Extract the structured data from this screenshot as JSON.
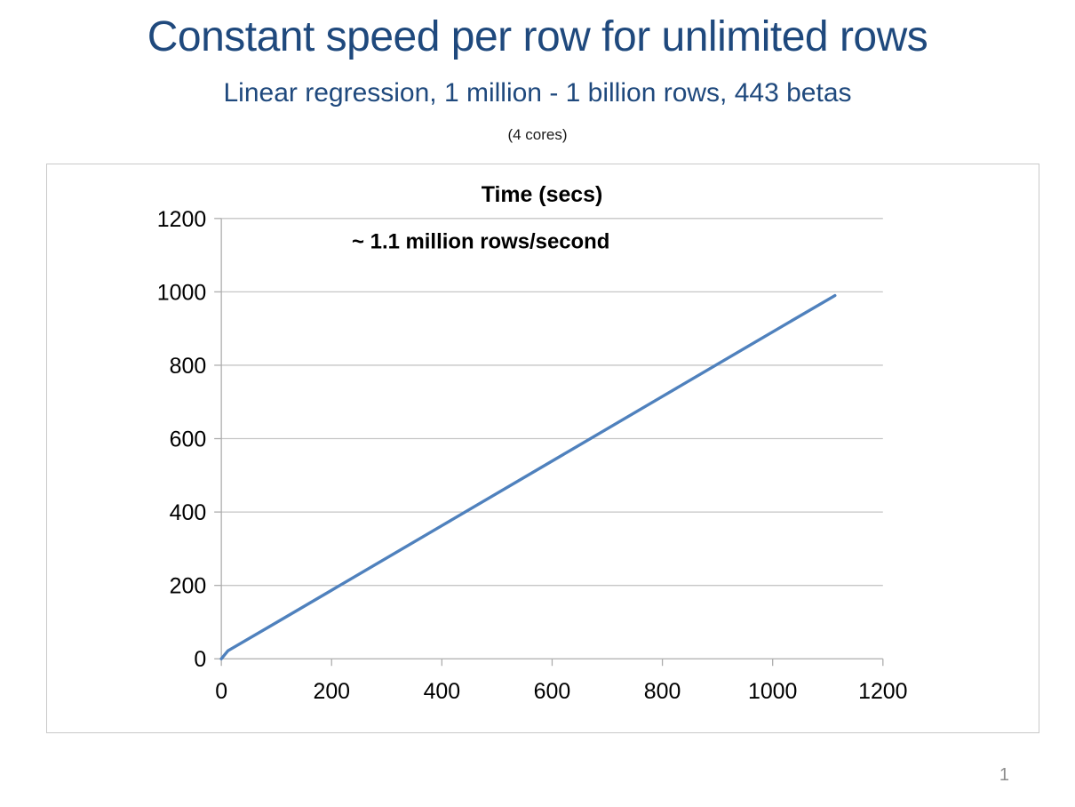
{
  "slide": {
    "title": "Constant speed per row for unlimited rows",
    "subtitle": "Linear regression, 1 million - 1 billion rows, 443 betas",
    "caption": "(4 cores)",
    "page_number": "1",
    "colors": {
      "title": "#1F497D",
      "chart_text": "#000000",
      "gridline": "#C6C6C6",
      "axis": "#ADADAD",
      "chart_border": "#C9C9C9",
      "series_line": "#4F81BD",
      "page_number": "#8C8C8C"
    }
  },
  "chart_data": {
    "type": "line",
    "title": "Time (secs)",
    "annotation": "~ 1.1 million rows/second",
    "xlabel": "",
    "ylabel": "",
    "xlim": [
      0,
      1200
    ],
    "ylim": [
      0,
      1200
    ],
    "x_ticks": [
      0,
      200,
      400,
      600,
      800,
      1000,
      1200
    ],
    "y_ticks": [
      0,
      200,
      400,
      600,
      800,
      1000,
      1200
    ],
    "grid": "horizontal-only",
    "legend": false,
    "series": [
      {
        "name": "Time (secs)",
        "color": "#4F81BD",
        "points": [
          [
            0,
            0
          ],
          [
            12,
            22
          ],
          [
            100,
            99
          ],
          [
            200,
            187
          ],
          [
            400,
            363
          ],
          [
            600,
            539
          ],
          [
            800,
            715
          ],
          [
            1000,
            891
          ],
          [
            1113,
            990
          ]
        ]
      }
    ]
  }
}
